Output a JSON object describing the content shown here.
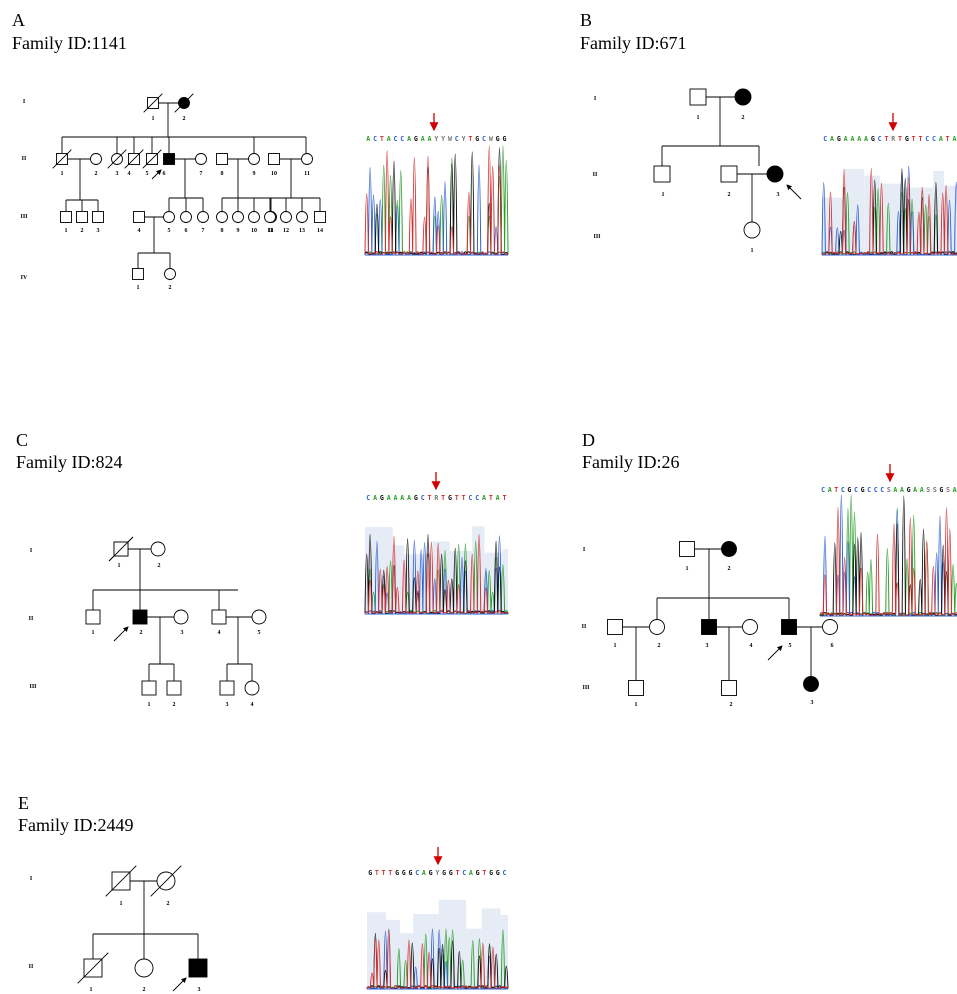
{
  "panels": [
    {
      "letter": "A",
      "family": "Family ID:1141",
      "generations": [
        "I",
        "II",
        "III",
        "IV"
      ],
      "sequence": "ACTACCAGAAYYWCYTGCWGG"
    },
    {
      "letter": "B",
      "family": "Family ID:671",
      "generations": [
        "I",
        "II",
        "III"
      ],
      "sequence": "CAGAAAAGCTRTGTTCCATA"
    },
    {
      "letter": "C",
      "family": "Family ID:824",
      "generations": [
        "I",
        "II",
        "III"
      ],
      "sequence": "CAGAAAAGCTRTGTTCCATAT"
    },
    {
      "letter": "D",
      "family": "Family ID:26",
      "generations": [
        "I",
        "II",
        "III"
      ],
      "sequence": "CATCGCGCCCSAAGAASSGSA"
    },
    {
      "letter": "E",
      "family": "Family ID:2449",
      "generations": [
        "I",
        "II"
      ],
      "sequence": "GTTTGGGCAGYGGTCAGTGGC"
    }
  ],
  "colors": {
    "A": "#2a9d2a",
    "C": "#3060d0",
    "G": "#111111",
    "T": "#d03030",
    "other": "#777777",
    "arrow": "#d00000",
    "affected": "#000000"
  }
}
